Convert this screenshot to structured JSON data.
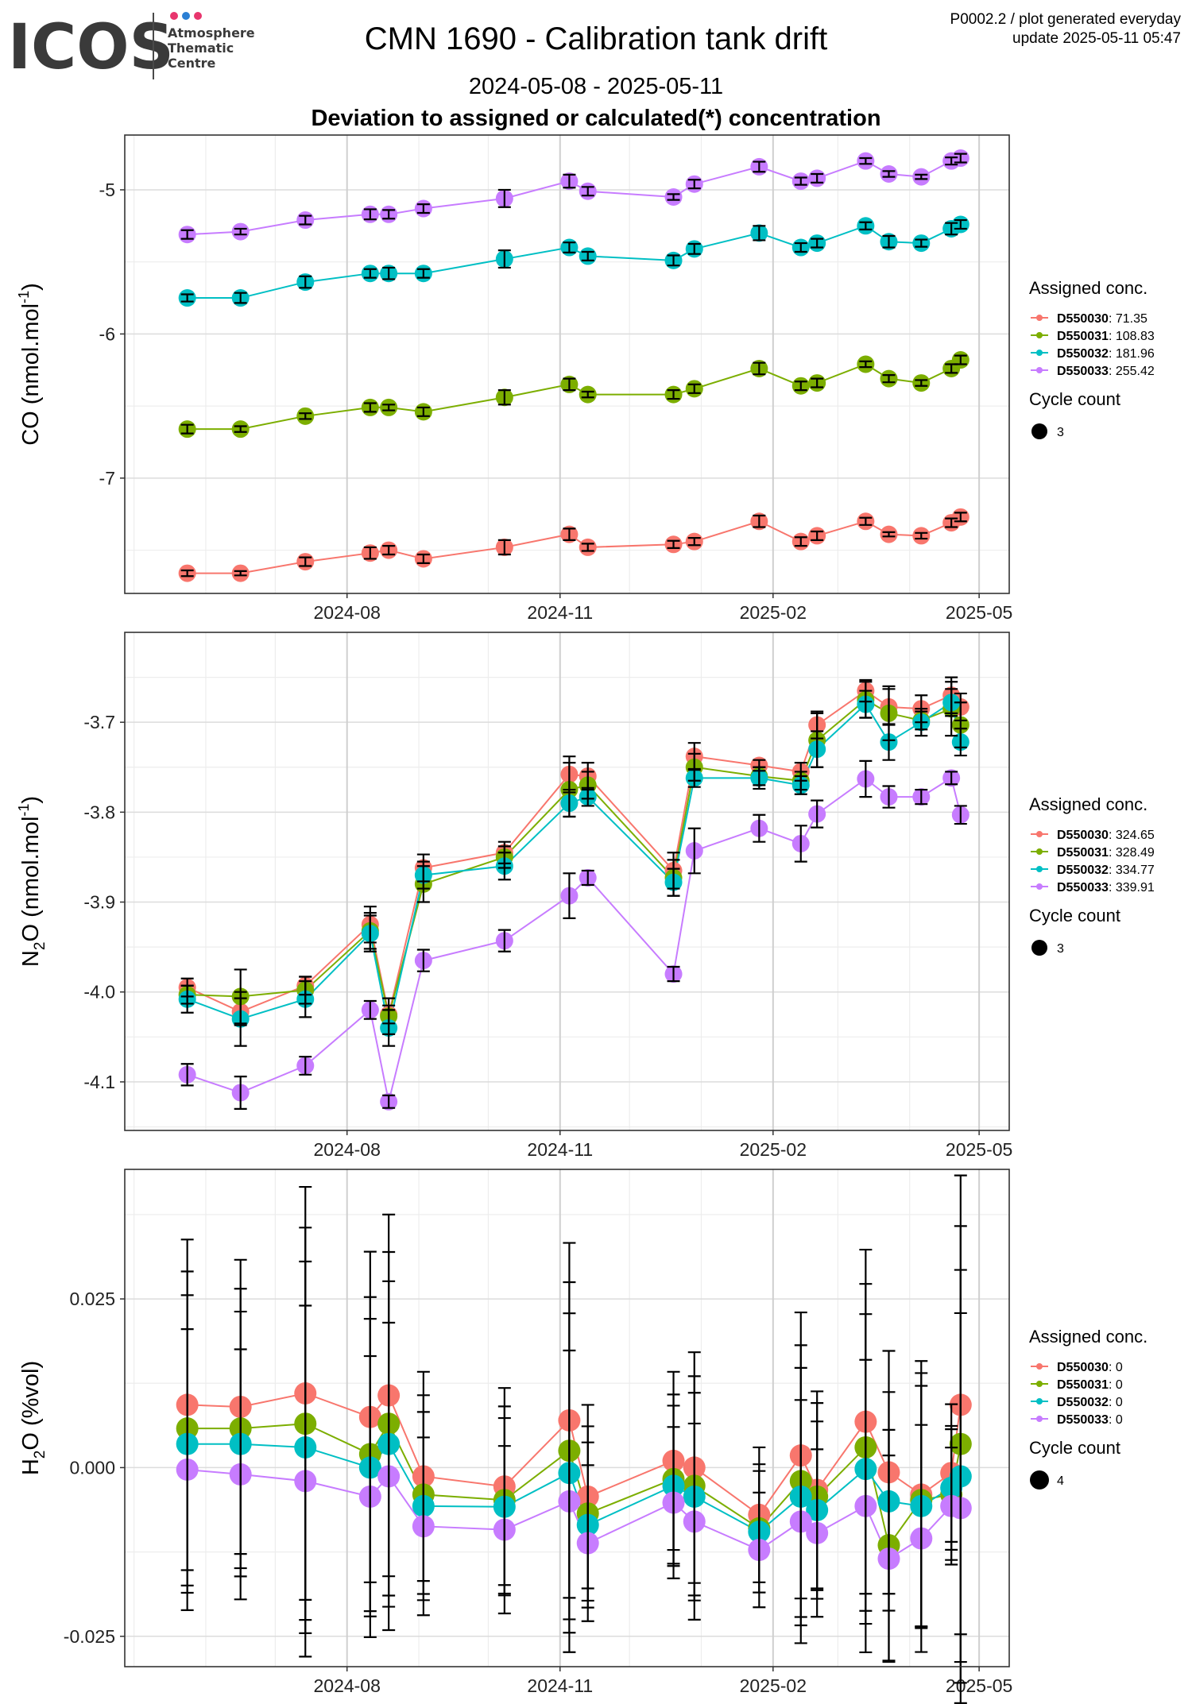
{
  "header": {
    "logo_word": "ICOS",
    "logo_sub": [
      "Atmosphere",
      "Thematic",
      "Centre"
    ],
    "title": "CMN 1690 - Calibration tank drift",
    "period": "2024-05-08 - 2025-05-11",
    "subtitle": "Deviation to assigned or calculated(*) concentration",
    "meta_line1": "P0002.2 / plot generated everyday",
    "meta_line2": "update  2025-05-11 05:47"
  },
  "colors": {
    "D550030": "#F8766D",
    "D550031": "#7CAE00",
    "D550032": "#00BFC4",
    "D550033": "#C77CFF",
    "logo_dots": [
      "#e8356d",
      "#2a7fd4",
      "#e8356d"
    ]
  },
  "chart_data": [
    {
      "type": "line",
      "panel": "CO",
      "ylabel_main": "CO (nmol.mol",
      "ylabel_sup": "-1",
      "ylabel_end": ")",
      "xlim": [
        "2024-04-27",
        "2025-05-14"
      ],
      "ylim": [
        -7.8,
        -4.62
      ],
      "yticks": [
        -7,
        -6,
        -5
      ],
      "ytick_labels": [
        "-7",
        "-6",
        "-5"
      ],
      "xticks": [
        "2024-08-01",
        "2024-11-01",
        "2025-02-01",
        "2025-05-01"
      ],
      "xtick_labels": [
        "2024-08",
        "2024-11",
        "2025-02",
        "2025-05"
      ],
      "legend_title": "Assigned conc.",
      "cycle_title": "Cycle count",
      "cycle_value": "3",
      "x": [
        "2024-05-24",
        "2024-06-16",
        "2024-07-14",
        "2024-08-11",
        "2024-08-19",
        "2024-09-03",
        "2024-10-08",
        "2024-11-05",
        "2024-11-13",
        "2024-12-20",
        "2024-12-29",
        "2025-01-26",
        "2025-02-13",
        "2025-02-20",
        "2025-03-13",
        "2025-03-23",
        "2025-04-06",
        "2025-04-19",
        "2025-04-23"
      ],
      "series": [
        {
          "name": "D550030",
          "label_value": "71.35",
          "values": [
            -7.66,
            -7.66,
            -7.58,
            -7.52,
            -7.5,
            -7.56,
            -7.48,
            -7.39,
            -7.48,
            -7.46,
            -7.44,
            -7.3,
            -7.44,
            -7.4,
            -7.3,
            -7.39,
            -7.4,
            -7.31,
            -7.27
          ],
          "err": [
            0.02,
            0.015,
            0.03,
            0.04,
            0.03,
            0.03,
            0.05,
            0.04,
            0.025,
            0.025,
            0.025,
            0.04,
            0.03,
            0.03,
            0.025,
            0.015,
            0.02,
            0.03,
            0.03
          ]
        },
        {
          "name": "D550031",
          "label_value": "108.83",
          "values": [
            -6.66,
            -6.66,
            -6.57,
            -6.51,
            -6.51,
            -6.54,
            -6.44,
            -6.35,
            -6.42,
            -6.42,
            -6.38,
            -6.24,
            -6.36,
            -6.34,
            -6.21,
            -6.31,
            -6.34,
            -6.24,
            -6.18
          ],
          "err": [
            0.03,
            0.02,
            0.02,
            0.03,
            0.02,
            0.03,
            0.05,
            0.04,
            0.02,
            0.03,
            0.03,
            0.04,
            0.03,
            0.03,
            0.02,
            0.025,
            0.02,
            0.03,
            0.03
          ]
        },
        {
          "name": "D550032",
          "label_value": "181.96",
          "values": [
            -5.75,
            -5.75,
            -5.64,
            -5.58,
            -5.58,
            -5.58,
            -5.48,
            -5.4,
            -5.46,
            -5.49,
            -5.41,
            -5.3,
            -5.4,
            -5.37,
            -5.25,
            -5.36,
            -5.37,
            -5.27,
            -5.24
          ],
          "err": [
            0.025,
            0.035,
            0.04,
            0.03,
            0.04,
            0.03,
            0.06,
            0.035,
            0.03,
            0.035,
            0.035,
            0.05,
            0.03,
            0.03,
            0.025,
            0.04,
            0.025,
            0.04,
            0.03
          ]
        },
        {
          "name": "D550033",
          "label_value": "255.42",
          "values": [
            -5.31,
            -5.29,
            -5.21,
            -5.17,
            -5.17,
            -5.13,
            -5.06,
            -4.94,
            -5.01,
            -5.05,
            -4.96,
            -4.84,
            -4.94,
            -4.92,
            -4.8,
            -4.89,
            -4.91,
            -4.8,
            -4.78
          ],
          "err": [
            0.03,
            0.02,
            0.03,
            0.035,
            0.03,
            0.03,
            0.06,
            0.045,
            0.03,
            0.02,
            0.03,
            0.035,
            0.025,
            0.03,
            0.02,
            0.02,
            0.015,
            0.025,
            0.03
          ]
        }
      ]
    },
    {
      "type": "line",
      "panel": "N2O",
      "ylabel_main": "N",
      "ylabel_sub": "2",
      "ylabel_mid": "O (nmol.mol",
      "ylabel_sup": "-1",
      "ylabel_end": ")",
      "xlim": [
        "2024-04-27",
        "2025-05-14"
      ],
      "ylim": [
        -4.154,
        -3.6
      ],
      "yticks": [
        -4.1,
        -4.0,
        -3.9,
        -3.8,
        -3.7
      ],
      "ytick_labels": [
        "-4.1",
        "-4.0",
        "-3.9",
        "-3.8",
        "-3.7"
      ],
      "xticks": [
        "2024-08-01",
        "2024-11-01",
        "2025-02-01",
        "2025-05-01"
      ],
      "xtick_labels": [
        "2024-08",
        "2024-11",
        "2025-02",
        "2025-05"
      ],
      "legend_title": "Assigned conc.",
      "cycle_title": "Cycle count",
      "cycle_value": "3",
      "x": [
        "2024-05-24",
        "2024-06-16",
        "2024-07-14",
        "2024-08-11",
        "2024-08-19",
        "2024-09-03",
        "2024-10-08",
        "2024-11-05",
        "2024-11-13",
        "2024-12-20",
        "2024-12-29",
        "2025-01-26",
        "2025-02-13",
        "2025-02-20",
        "2025-03-13",
        "2025-03-23",
        "2025-04-06",
        "2025-04-19",
        "2025-04-23"
      ],
      "series": [
        {
          "name": "D550030",
          "label_value": "324.65",
          "values": [
            -3.995,
            -4.022,
            -3.993,
            -3.925,
            -4.025,
            -3.862,
            -3.845,
            -3.758,
            -3.76,
            -3.865,
            -3.738,
            -3.748,
            -3.755,
            -3.703,
            -3.665,
            -3.683,
            -3.685,
            -3.67,
            -3.683
          ],
          "err": [
            0.01,
            0.015,
            0.01,
            0.02,
            0.01,
            0.015,
            0.012,
            0.02,
            0.015,
            0.02,
            0.015,
            0.006,
            0.01,
            0.015,
            0.012,
            0.02,
            0.015,
            0.02,
            0.015
          ]
        },
        {
          "name": "D550031",
          "label_value": "328.49",
          "values": [
            -4.003,
            -4.005,
            -3.998,
            -3.932,
            -4.027,
            -3.88,
            -3.85,
            -3.775,
            -3.77,
            -3.873,
            -3.75,
            -3.76,
            -3.765,
            -3.72,
            -3.675,
            -3.69,
            -3.698,
            -3.685,
            -3.703
          ],
          "err": [
            0.01,
            0.03,
            0.015,
            0.02,
            0.02,
            0.02,
            0.012,
            0.03,
            0.015,
            0.02,
            0.015,
            0.01,
            0.01,
            0.03,
            0.02,
            0.03,
            0.01,
            0.03,
            0.025
          ]
        },
        {
          "name": "D550032",
          "label_value": "334.77",
          "values": [
            -4.008,
            -4.03,
            -4.008,
            -3.935,
            -4.04,
            -3.87,
            -3.86,
            -3.79,
            -3.783,
            -3.878,
            -3.762,
            -3.762,
            -3.77,
            -3.73,
            -3.68,
            -3.722,
            -3.7,
            -3.678,
            -3.722
          ],
          "err": [
            0.015,
            0.03,
            0.02,
            0.02,
            0.02,
            0.015,
            0.015,
            0.015,
            0.01,
            0.015,
            0.01,
            0.012,
            0.01,
            0.02,
            0.015,
            0.02,
            0.015,
            0.015,
            0.015
          ]
        },
        {
          "name": "D550033",
          "label_value": "339.91",
          "values": [
            -4.092,
            -4.112,
            -4.082,
            -4.02,
            -4.122,
            -3.965,
            -3.943,
            -3.893,
            -3.873,
            -3.98,
            -3.843,
            -3.818,
            -3.835,
            -3.802,
            -3.763,
            -3.783,
            -3.783,
            -3.762,
            -3.803
          ],
          "err": [
            0.012,
            0.018,
            0.01,
            0.01,
            0.007,
            0.012,
            0.012,
            0.025,
            0.008,
            0.008,
            0.025,
            0.015,
            0.02,
            0.015,
            0.02,
            0.012,
            0.008,
            0.007,
            0.01
          ]
        }
      ]
    },
    {
      "type": "line",
      "panel": "H2O",
      "ylabel_main": "H",
      "ylabel_sub": "2",
      "ylabel_mid": "O (%vol)",
      "xlim": [
        "2024-04-27",
        "2025-05-14"
      ],
      "ylim": [
        -0.0295,
        0.0442
      ],
      "yticks": [
        -0.025,
        0.0,
        0.025
      ],
      "ytick_labels": [
        "-0.025",
        "0.000",
        "0.025"
      ],
      "xticks": [
        "2024-08-01",
        "2024-11-01",
        "2025-02-01",
        "2025-05-01"
      ],
      "xtick_labels": [
        "2024-08",
        "2024-11",
        "2025-02",
        "2025-05"
      ],
      "legend_title": "Assigned conc.",
      "cycle_title": "Cycle count",
      "cycle_value": "4",
      "x": [
        "2024-05-24",
        "2024-06-16",
        "2024-07-14",
        "2024-08-11",
        "2024-08-19",
        "2024-09-03",
        "2024-10-08",
        "2024-11-05",
        "2024-11-13",
        "2024-12-20",
        "2024-12-29",
        "2025-01-26",
        "2025-02-13",
        "2025-02-20",
        "2025-03-13",
        "2025-03-23",
        "2025-04-06",
        "2025-04-19",
        "2025-04-23"
      ],
      "series": [
        {
          "name": "D550030",
          "label_value": "0",
          "values": [
            0.0093,
            0.009,
            0.011,
            0.0075,
            0.0107,
            -0.0013,
            -0.0028,
            0.007,
            -0.0043,
            0.001,
            0.0,
            -0.007,
            0.0018,
            -0.0033,
            0.0068,
            -0.0007,
            -0.004,
            -0.0008,
            0.0093
          ],
          "err": [
            0.0245,
            0.0218,
            0.0306,
            0.0245,
            0.0268,
            0.0155,
            0.0146,
            0.0263,
            0.0136,
            0.0132,
            0.0171,
            0.01,
            0.0212,
            0.0146,
            0.0255,
            0.018,
            0.0198,
            0.0102,
            0.034
          ]
        },
        {
          "name": "D550031",
          "label_value": "0",
          "values": [
            0.0058,
            0.0058,
            0.0065,
            0.002,
            0.0065,
            -0.004,
            -0.0048,
            0.0025,
            -0.0068,
            -0.0017,
            -0.0027,
            -0.009,
            -0.002,
            -0.0043,
            0.003,
            -0.0115,
            -0.0048,
            -0.004,
            0.0035
          ]
        },
        {
          "name": "D550032",
          "label_value": "0",
          "values": [
            0.0035,
            0.0035,
            0.003,
            0.0,
            0.0035,
            -0.0057,
            -0.0058,
            -0.0008,
            -0.0085,
            -0.0027,
            -0.0043,
            -0.0095,
            -0.0043,
            -0.0063,
            -0.0002,
            -0.005,
            -0.0057,
            -0.003,
            -0.0013
          ]
        },
        {
          "name": "D550033",
          "label_value": "0",
          "values": [
            -0.0003,
            -0.001,
            -0.002,
            -0.0043,
            -0.0013,
            -0.0087,
            -0.0092,
            -0.005,
            -0.0112,
            -0.0052,
            -0.008,
            -0.0122,
            -0.008,
            -0.0097,
            -0.0057,
            -0.0135,
            -0.0105,
            -0.0057,
            -0.006
          ]
        }
      ]
    }
  ]
}
